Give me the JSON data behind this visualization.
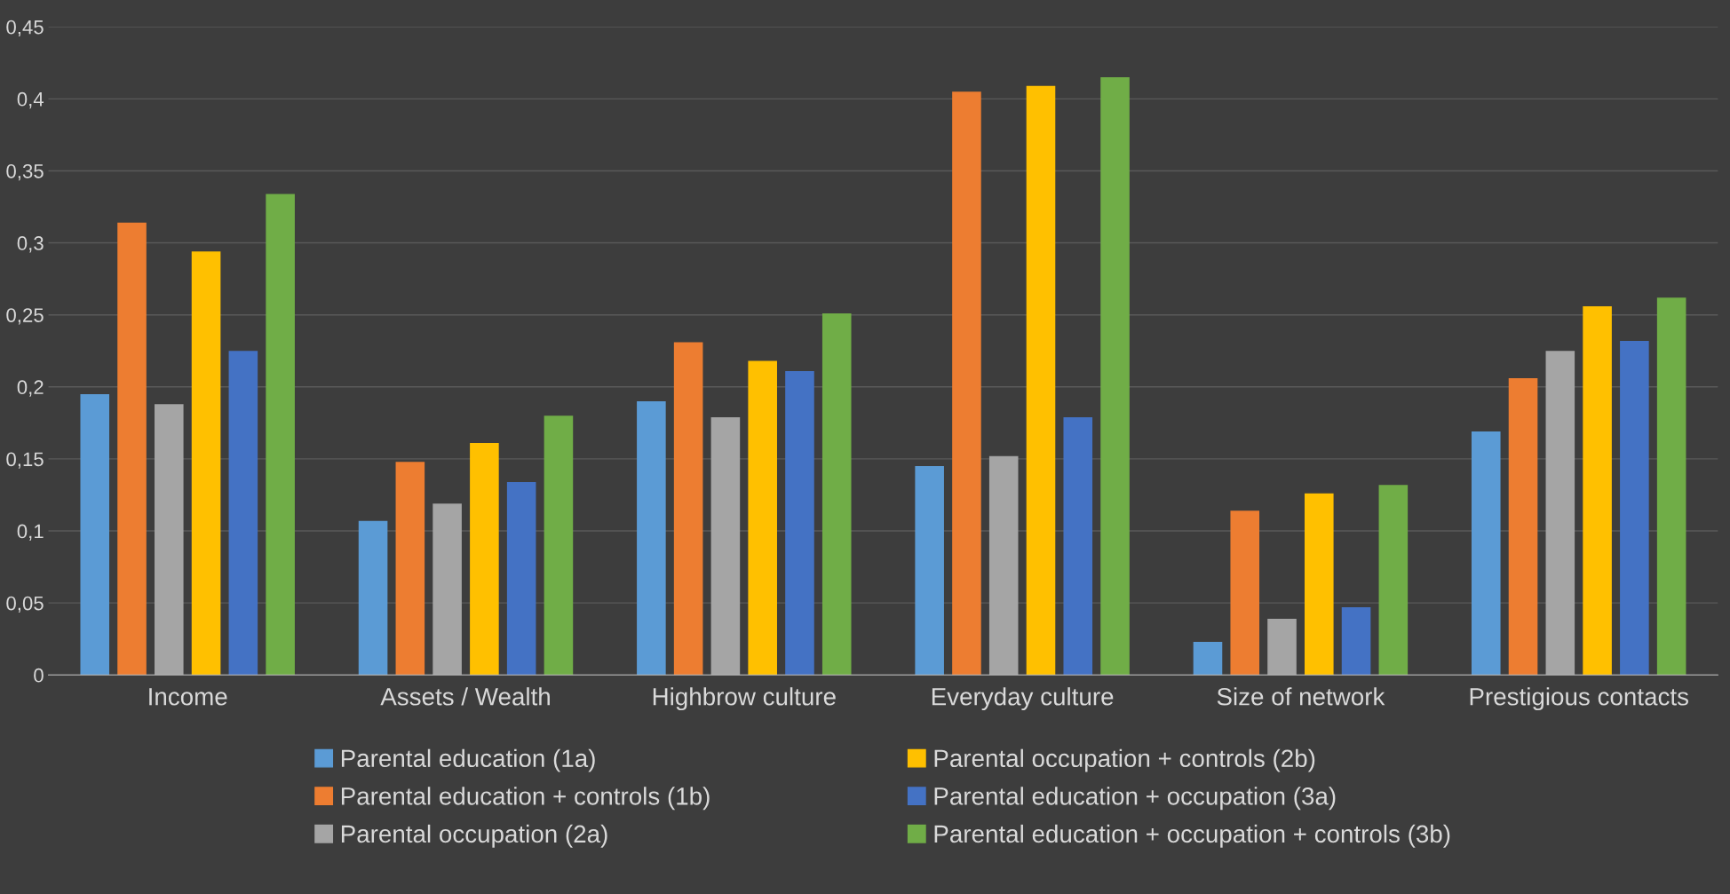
{
  "chart_data": {
    "type": "bar",
    "categories": [
      "Income",
      "Assets / Wealth",
      "Highbrow culture",
      "Everyday culture",
      "Size of network",
      "Prestigious contacts"
    ],
    "series": [
      {
        "name": "Parental education (1a)",
        "color": "#5b9bd5",
        "values": [
          0.195,
          0.107,
          0.19,
          0.145,
          0.023,
          0.169
        ]
      },
      {
        "name": "Parental education + controls (1b)",
        "color": "#ed7d31",
        "values": [
          0.314,
          0.148,
          0.231,
          0.405,
          0.114,
          0.206
        ]
      },
      {
        "name": "Parental occupation (2a)",
        "color": "#a5a5a5",
        "values": [
          0.188,
          0.119,
          0.179,
          0.152,
          0.039,
          0.225
        ]
      },
      {
        "name": "Parental occupation + controls (2b)",
        "color": "#ffc000",
        "values": [
          0.294,
          0.161,
          0.218,
          0.409,
          0.126,
          0.256
        ]
      },
      {
        "name": "Parental education + occupation (3a)",
        "color": "#4472c4",
        "values": [
          0.225,
          0.134,
          0.211,
          0.179,
          0.047,
          0.232
        ]
      },
      {
        "name": "Parental education + occupation + controls (3b)",
        "color": "#70ad47",
        "values": [
          0.334,
          0.18,
          0.251,
          0.415,
          0.132,
          0.262
        ]
      }
    ],
    "ylim": [
      0,
      0.45
    ],
    "yticks": [
      {
        "value": 0,
        "label": "0"
      },
      {
        "value": 0.05,
        "label": "0,05"
      },
      {
        "value": 0.1,
        "label": "0,1"
      },
      {
        "value": 0.15,
        "label": "0,15"
      },
      {
        "value": 0.2,
        "label": "0,2"
      },
      {
        "value": 0.25,
        "label": "0,25"
      },
      {
        "value": 0.3,
        "label": "0,3"
      },
      {
        "value": 0.35,
        "label": "0,35"
      },
      {
        "value": 0.4,
        "label": "0,4"
      },
      {
        "value": 0.45,
        "label": "0,45"
      }
    ],
    "grid": "y",
    "legend": "bottom"
  }
}
